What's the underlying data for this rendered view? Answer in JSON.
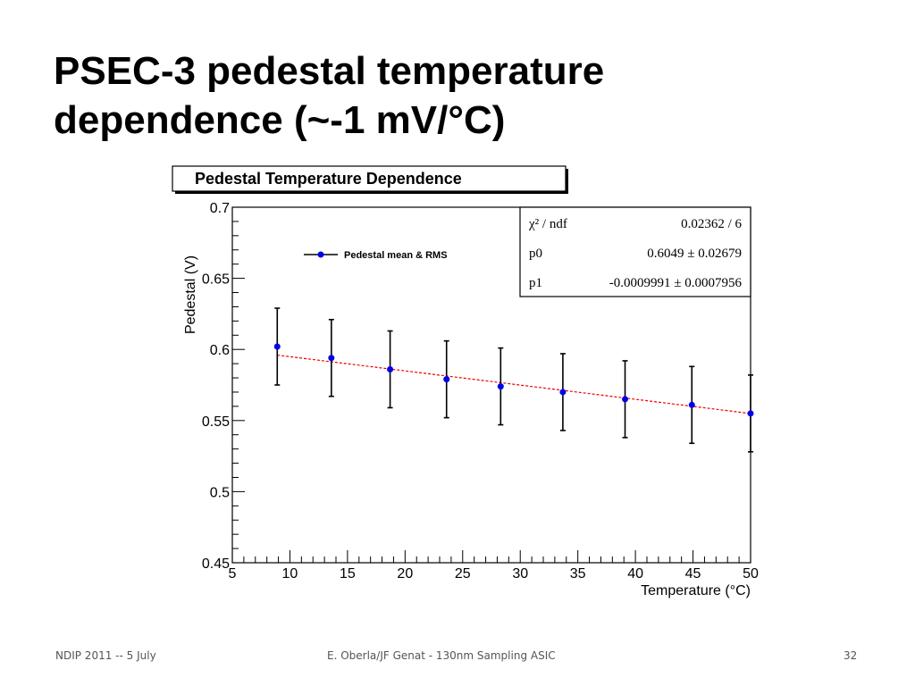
{
  "slide": {
    "title_line1": "PSEC-3 pedestal temperature",
    "title_line2": "dependence (~-1 mV/°C)"
  },
  "footer": {
    "left": "NDIP 2011 -- 5 July",
    "center": "E. Oberla/JF Genat - 130nm Sampling ASIC",
    "page": "32"
  },
  "colors": {
    "points": "#0000ee",
    "fit": "#ee0000",
    "errorbars": "#000000"
  },
  "chart_data": {
    "type": "scatter",
    "title": "Pedestal Temperature Dependence",
    "xlabel": "Temperature (°C)",
    "ylabel": "Pedestal (V)",
    "xlim": [
      5,
      50
    ],
    "ylim": [
      0.45,
      0.7
    ],
    "xticks": [
      "5",
      "10",
      "15",
      "20",
      "25",
      "30",
      "35",
      "40",
      "45",
      "50"
    ],
    "yticks": [
      "0.45",
      "0.5",
      "0.55",
      "0.6",
      "0.65",
      "0.7"
    ],
    "legend": "Pedestal mean & RMS",
    "legend_position": "top-left",
    "series": [
      {
        "name": "Pedestal mean & RMS",
        "x": [
          8.9,
          13.6,
          18.7,
          23.6,
          28.3,
          33.7,
          39.1,
          44.9,
          50.0
        ],
        "y": [
          0.602,
          0.594,
          0.586,
          0.579,
          0.574,
          0.57,
          0.565,
          0.561,
          0.555
        ],
        "err": [
          0.027,
          0.027,
          0.027,
          0.027,
          0.027,
          0.027,
          0.027,
          0.027,
          0.027
        ]
      }
    ],
    "fit": {
      "p0": 0.6049,
      "p1": -0.0009991,
      "x_range": [
        8.9,
        50.0
      ]
    },
    "stats": [
      {
        "label": "χ² / ndf",
        "value": "0.02362 / 6"
      },
      {
        "label": "p0",
        "value": "0.6049 ± 0.02679"
      },
      {
        "label": "p1",
        "value": "-0.0009991 ± 0.0007956"
      }
    ]
  }
}
